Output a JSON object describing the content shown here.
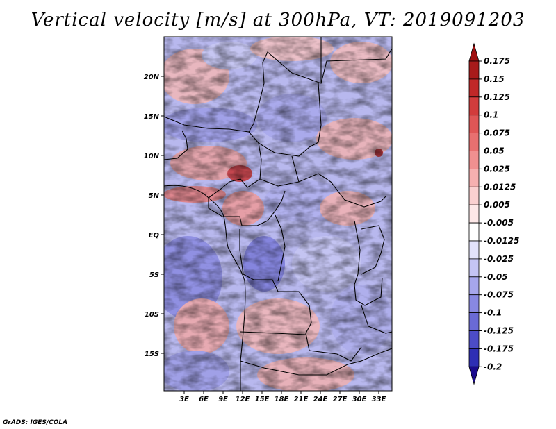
{
  "title": "Vertical velocity [m/s] at 300hPa, VT: 2019091203",
  "credit": "GrADS: IGES/COLA",
  "map": {
    "lat_labels": [
      "20N",
      "15N",
      "10N",
      "5N",
      "EQ",
      "5S",
      "10S",
      "15S"
    ],
    "lon_labels": [
      "3E",
      "6E",
      "9E",
      "12E",
      "15E",
      "18E",
      "21E",
      "24E",
      "27E",
      "30E",
      "33E"
    ],
    "lat_range": [
      -19,
      25
    ],
    "lon_range": [
      0,
      35
    ],
    "field": "vertical velocity (omega) at 300 hPa"
  },
  "colorbar": {
    "levels": [
      {
        "label": "0.175",
        "color": "#a81b1b"
      },
      {
        "label": "0.15",
        "color": "#c02828"
      },
      {
        "label": "0.125",
        "color": "#d23c3c"
      },
      {
        "label": "0.1",
        "color": "#df5656"
      },
      {
        "label": "0.075",
        "color": "#e87070"
      },
      {
        "label": "0.05",
        "color": "#f09090"
      },
      {
        "label": "0.025",
        "color": "#f6b0b0"
      },
      {
        "label": "0.0125",
        "color": "#fad0d0"
      },
      {
        "label": "0.005",
        "color": "#fde8e8"
      },
      {
        "label": "-0.005",
        "color": "#ffffff"
      },
      {
        "label": "-0.0125",
        "color": "#e2e2fb"
      },
      {
        "label": "-0.025",
        "color": "#c4c4f4"
      },
      {
        "label": "-0.05",
        "color": "#a6a6ec"
      },
      {
        "label": "-0.075",
        "color": "#8888e2"
      },
      {
        "label": "-0.1",
        "color": "#6a6ad6"
      },
      {
        "label": "-0.125",
        "color": "#4c4cc8"
      },
      {
        "label": "-0.175",
        "color": "#2e2eb4"
      },
      {
        "label": "-0.2",
        "color": "#1a1a9c"
      }
    ],
    "top_arrow_color": "#a01010",
    "bottom_arrow_color": "#1a0a8c"
  }
}
